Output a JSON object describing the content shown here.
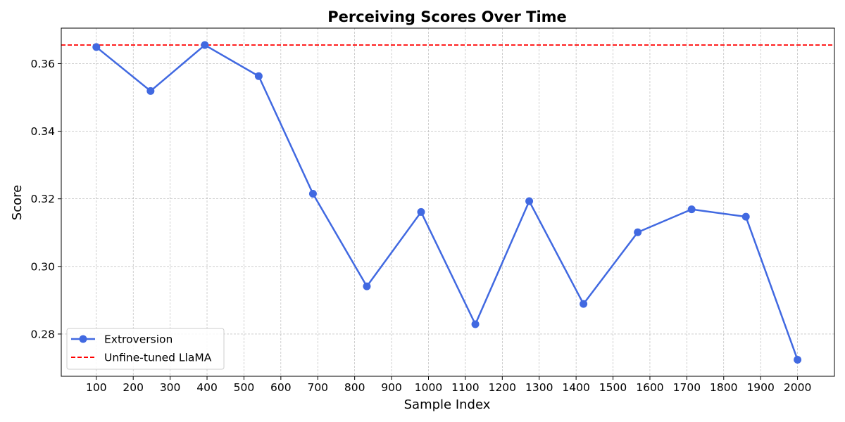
{
  "chart_data": {
    "type": "line",
    "title": "Perceiving Scores Over Time",
    "xlabel": "Sample Index",
    "ylabel": "Score",
    "xlim": [
      5,
      2100
    ],
    "ylim": [
      0.2675,
      0.3705
    ],
    "xticks": [
      100,
      200,
      300,
      400,
      500,
      600,
      700,
      800,
      900,
      1000,
      1100,
      1200,
      1300,
      1400,
      1500,
      1600,
      1700,
      1800,
      1900,
      2000
    ],
    "yticks": [
      0.28,
      0.3,
      0.32,
      0.34,
      0.36
    ],
    "grid": true,
    "legend_position": "lower-left",
    "series": [
      {
        "name": "Extroversion",
        "color": "#4169e1",
        "x": [
          100,
          247,
          394,
          540,
          687,
          833,
          980,
          1127,
          1273,
          1420,
          1567,
          1713,
          1860,
          2000
        ],
        "y": [
          0.3649,
          0.3519,
          0.3655,
          0.3563,
          0.3215,
          0.2941,
          0.3161,
          0.2829,
          0.3193,
          0.2889,
          0.3101,
          0.3169,
          0.3147,
          0.2724
        ]
      }
    ],
    "reference_lines": [
      {
        "name": "Unfine-tuned LlaMA",
        "color": "#ff0000",
        "style": "dashed",
        "y": 0.3655
      }
    ]
  }
}
